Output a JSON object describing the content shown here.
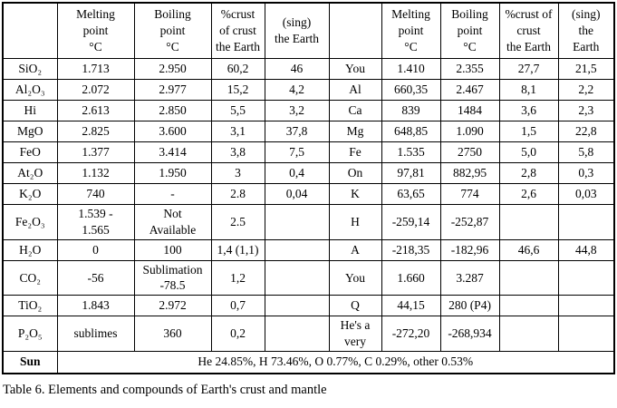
{
  "table": {
    "header": [
      "",
      "Melting\npoint\n°C",
      "Boiling\npoint\n°C",
      "%crust\nof crust\nthe Earth",
      "(sing)\nthe Earth",
      "",
      "Melting\npoint\n°C",
      "Boiling\npoint\n°C",
      "%crust of\ncrust\nthe Earth",
      "(sing)\nthe\nEarth"
    ],
    "rows": [
      {
        "label": "SiO₂",
        "left": [
          "1.713",
          "2.950",
          "60,2",
          "46"
        ],
        "label2": "You",
        "right": [
          "1.410",
          "2.355",
          "27,7",
          "21,5"
        ]
      },
      {
        "label": "Al₂O₃",
        "left": [
          "2.072",
          "2.977",
          "15,2",
          "4,2"
        ],
        "label2": "Al",
        "right": [
          "660,35",
          "2.467",
          "8,1",
          "2,2"
        ]
      },
      {
        "label": "Hi",
        "left": [
          "2.613",
          "2.850",
          "5,5",
          "3,2"
        ],
        "label2": "Ca",
        "right": [
          "839",
          "1484",
          "3,6",
          "2,3"
        ]
      },
      {
        "label": "MgO",
        "left": [
          "2.825",
          "3.600",
          "3,1",
          "37,8"
        ],
        "label2": "Mg",
        "right": [
          "648,85",
          "1.090",
          "1,5",
          "22,8"
        ]
      },
      {
        "label": "FeO",
        "left": [
          "1.377",
          "3.414",
          "3,8",
          "7,5"
        ],
        "label2": "Fe",
        "right": [
          "1.535",
          "2750",
          "5,0",
          "5,8"
        ]
      },
      {
        "label": "At₂O",
        "left": [
          "1.132",
          "1.950",
          "3",
          "0,4"
        ],
        "label2": "On",
        "right": [
          "97,81",
          "882,95",
          "2,8",
          "0,3"
        ]
      },
      {
        "label": "K₂O",
        "left": [
          "740",
          "-",
          "2.8",
          "0,04"
        ],
        "label2": "K",
        "right": [
          "63,65",
          "774",
          "2,6",
          "0,03"
        ]
      },
      {
        "label": "Fe₂O₃",
        "left": [
          "1.539 -\n1.565",
          "Not\nAvailable",
          "2.5",
          ""
        ],
        "label2": "H",
        "right": [
          "-259,14",
          "-252,87",
          "",
          ""
        ]
      },
      {
        "label": "H₂O",
        "left": [
          "0",
          "100",
          "1,4 (1,1)",
          ""
        ],
        "label2": "A",
        "right": [
          "-218,35",
          "-182,96",
          "46,6",
          "44,8"
        ]
      },
      {
        "label": "CO₂",
        "left": [
          "-56",
          "Sublimation\n-78.5",
          "1,2",
          ""
        ],
        "label2": "You",
        "right": [
          "1.660",
          "3.287",
          "",
          ""
        ]
      },
      {
        "label": "TiO₂",
        "left": [
          "1.843",
          "2.972",
          "0,7",
          ""
        ],
        "label2": "Q",
        "right": [
          "44,15",
          "280 (P4)",
          "",
          ""
        ]
      },
      {
        "label": "P₂O₅",
        "left": [
          "sublimes",
          "360",
          "0,2",
          ""
        ],
        "label2": "He's a very",
        "right": [
          "-272,20",
          "-268,934",
          "",
          ""
        ]
      }
    ],
    "footer": {
      "label": "Sun",
      "text": "He 24.85%, H 73.46%, O 0.77%, C 0.29%, other 0.53%"
    }
  },
  "caption": "Table 6. Elements and compounds of Earth's crust and mantle"
}
